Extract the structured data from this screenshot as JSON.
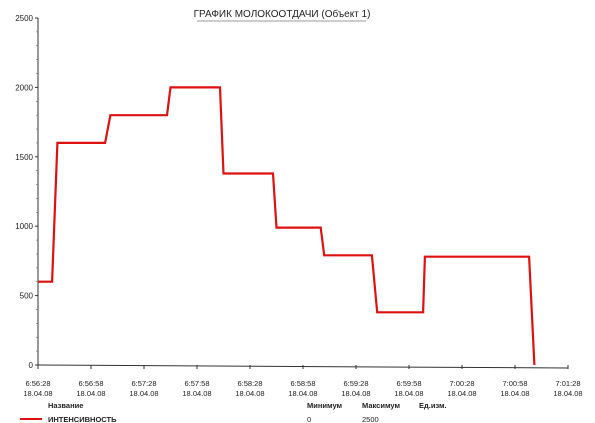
{
  "chart_data": {
    "type": "line",
    "title": "ГРАФИК МОЛОКООТДАЧИ (Объект 1)",
    "ylim": [
      0,
      2500
    ],
    "yticks": [
      "0",
      "500",
      "1000",
      "1500",
      "2000",
      "2500"
    ],
    "xticks": [
      {
        "time": "6:56:28",
        "date": "18.04.08"
      },
      {
        "time": "6:56:58",
        "date": "18.04.08"
      },
      {
        "time": "6:57:28",
        "date": "18.04.08"
      },
      {
        "time": "6:57:58",
        "date": "18.04.08"
      },
      {
        "time": "6:58:28",
        "date": "18.04.08"
      },
      {
        "time": "6:58:58",
        "date": "18.04.08"
      },
      {
        "time": "6:59:28",
        "date": "18.04.08"
      },
      {
        "time": "6:59:58",
        "date": "18.04.08"
      },
      {
        "time": "7:00:28",
        "date": "18.04.08"
      },
      {
        "time": "7:00:58",
        "date": "18.04.08"
      },
      {
        "time": "7:01:28",
        "date": "18.04.08"
      }
    ],
    "series": [
      {
        "name": "ИНТЕНСИВНОСТЬ",
        "color": "#dd1111",
        "points": [
          [
            "6:56:28",
            600
          ],
          [
            "6:56:36",
            600
          ],
          [
            "6:56:39",
            1600
          ],
          [
            "6:57:06",
            1600
          ],
          [
            "6:57:09",
            1800
          ],
          [
            "6:57:41",
            1800
          ],
          [
            "6:57:43",
            2000
          ],
          [
            "6:58:11",
            2000
          ],
          [
            "6:58:13",
            1380
          ],
          [
            "6:58:41",
            1380
          ],
          [
            "6:58:43",
            990
          ],
          [
            "6:59:08",
            990
          ],
          [
            "6:59:10",
            790
          ],
          [
            "6:59:37",
            790
          ],
          [
            "6:59:40",
            380
          ],
          [
            "7:00:06",
            380
          ],
          [
            "7:00:07",
            780
          ],
          [
            "7:01:06",
            780
          ],
          [
            "7:01:09",
            0
          ]
        ]
      }
    ],
    "grid": false
  },
  "legend": {
    "header_name": "Название",
    "header_min": "Минимум",
    "header_max": "Максимум",
    "header_unit": "Ед.изм.",
    "min_value": "0",
    "max_value": "2500"
  }
}
